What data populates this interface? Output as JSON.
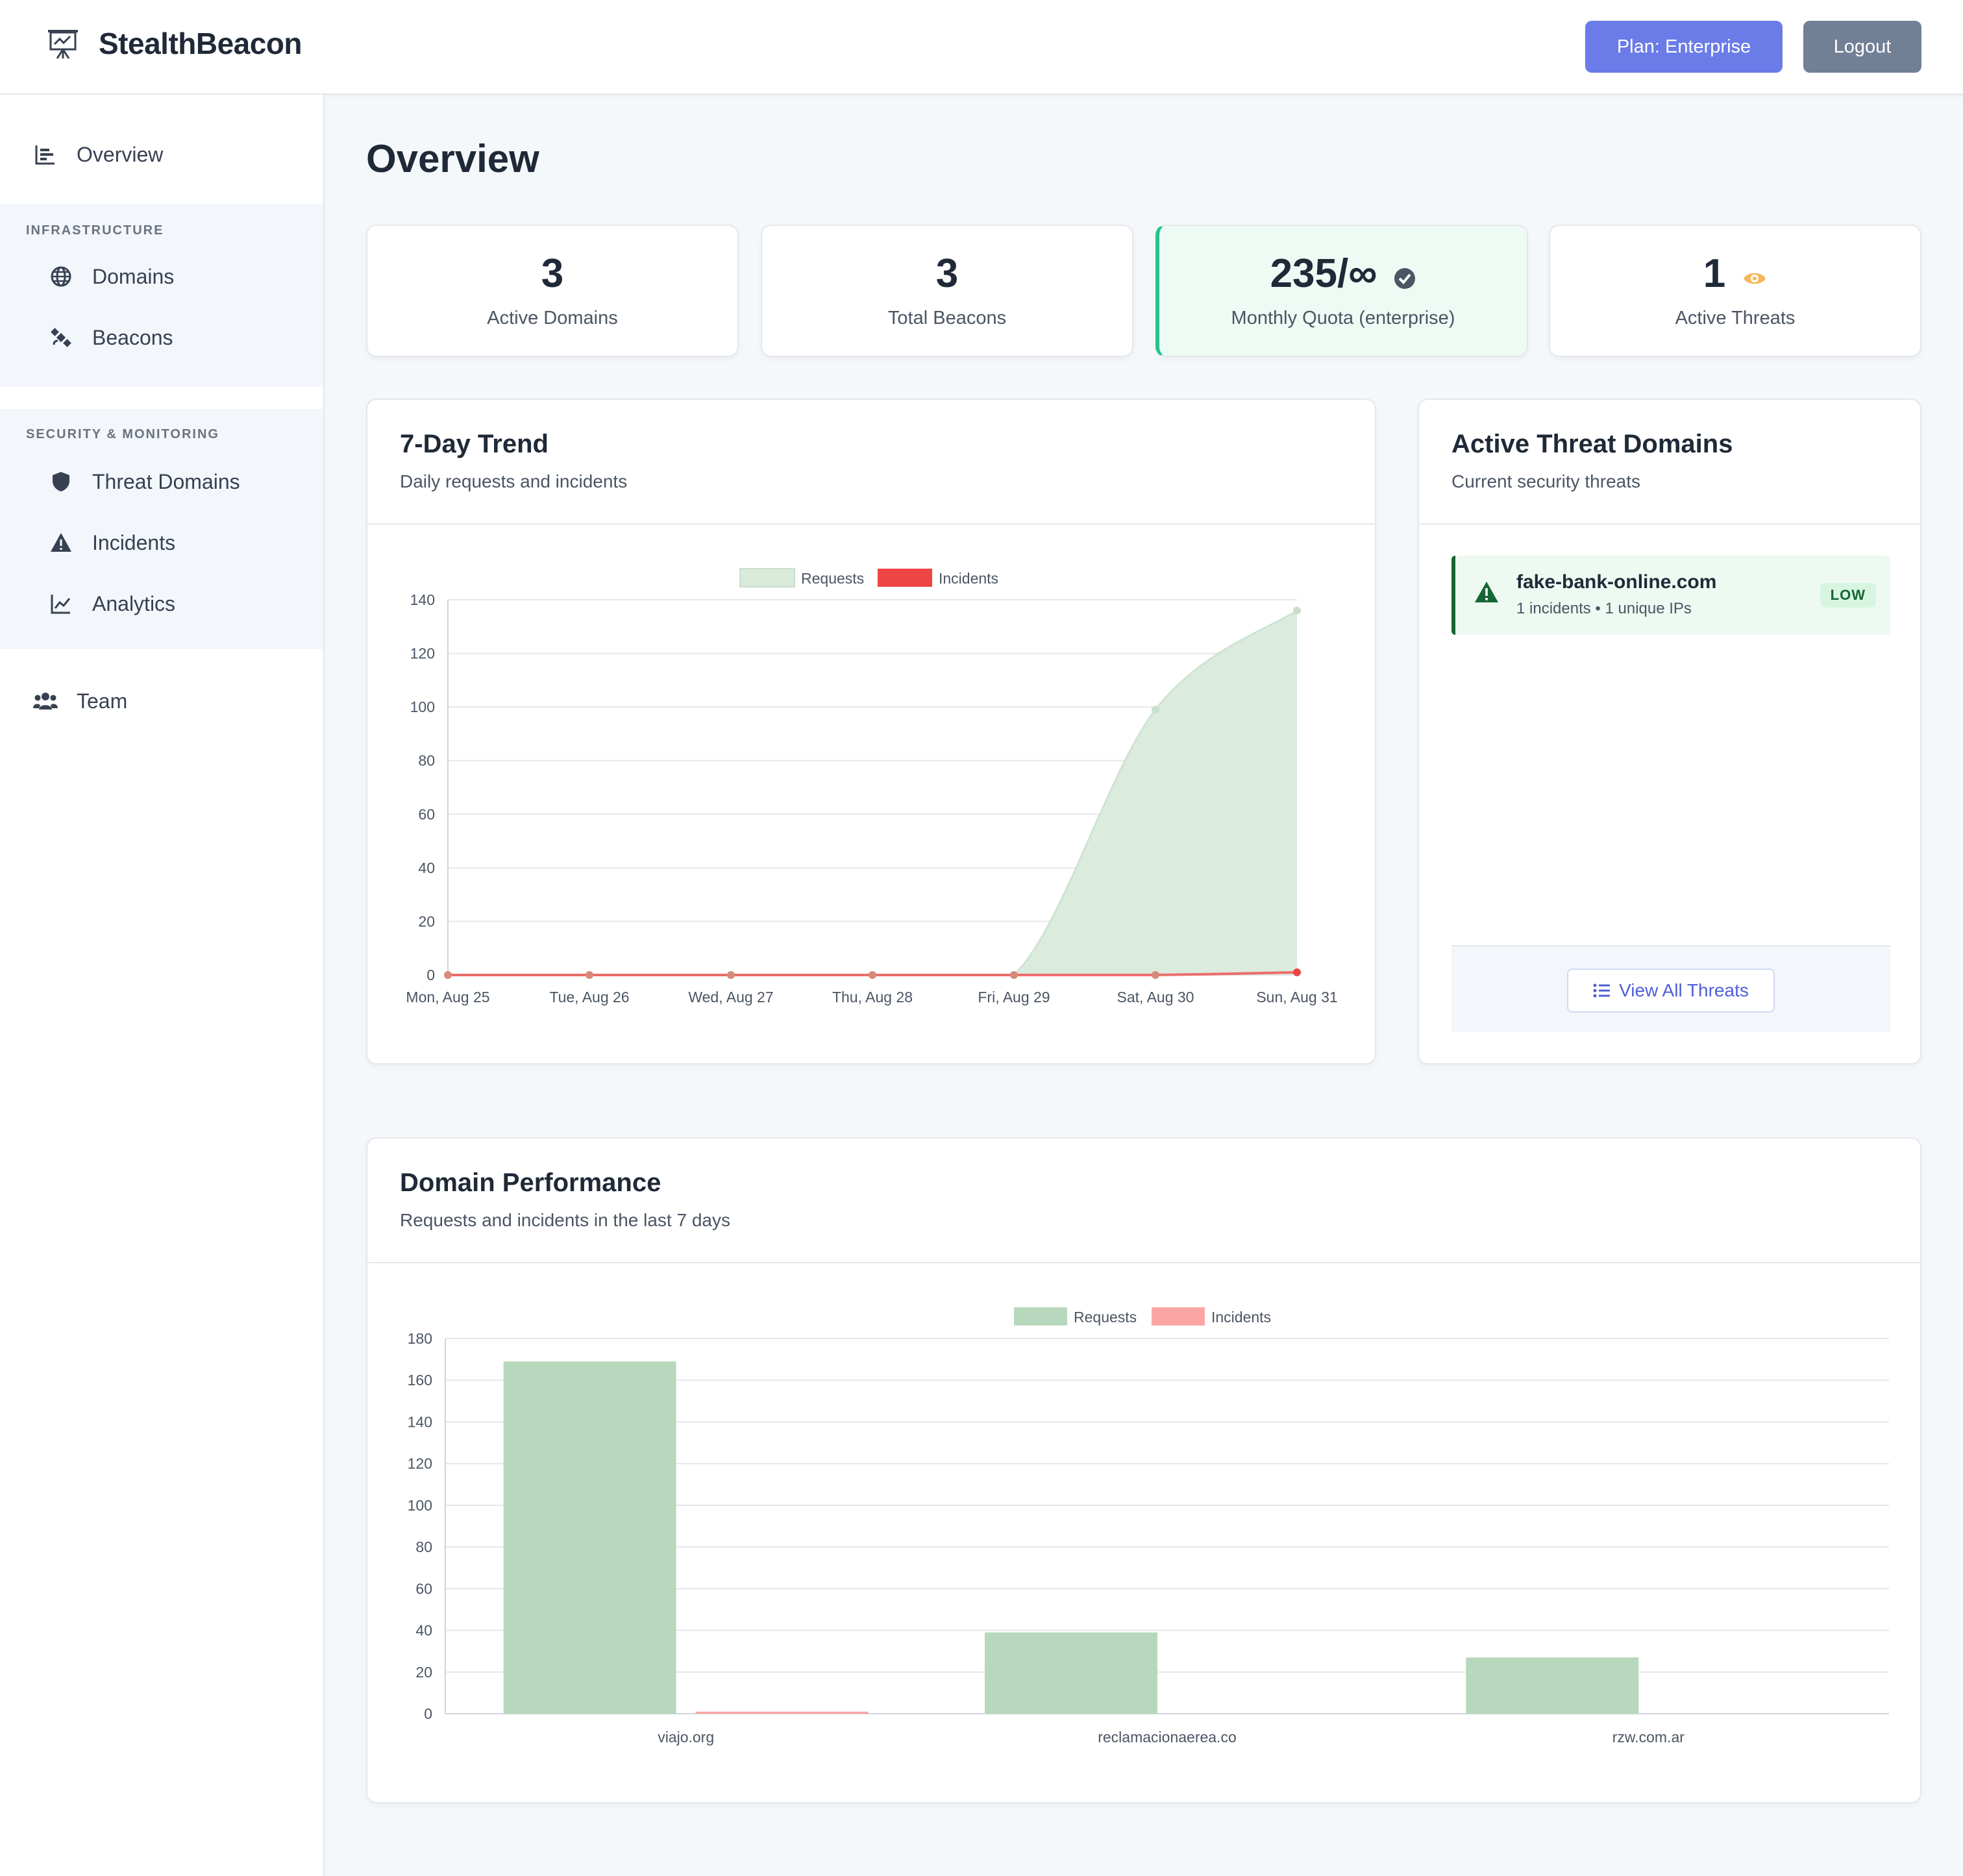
{
  "header": {
    "brand": "StealthBeacon",
    "plan_label": "Plan: Enterprise",
    "logout_label": "Logout"
  },
  "sidebar": {
    "overview": "Overview",
    "groups": [
      {
        "title": "INFRASTRUCTURE",
        "items": [
          "Domains",
          "Beacons"
        ]
      },
      {
        "title": "SECURITY & MONITORING",
        "items": [
          "Threat Domains",
          "Incidents",
          "Analytics"
        ]
      }
    ],
    "team": "Team"
  },
  "main": {
    "title": "Overview",
    "stats": [
      {
        "value": "3",
        "label": "Active Domains"
      },
      {
        "value": "3",
        "label": "Total Beacons"
      },
      {
        "value": "235/∞",
        "label": "Monthly Quota (enterprise)"
      },
      {
        "value": "1",
        "label": "Active Threats"
      }
    ],
    "trend_card": {
      "title": "7-Day Trend",
      "subtitle": "Daily requests and incidents"
    },
    "threat_card": {
      "title": "Active Threat Domains",
      "subtitle": "Current security threats",
      "items": [
        {
          "domain": "fake-bank-online.com",
          "meta": "1 incidents • 1 unique IPs",
          "level": "LOW"
        }
      ],
      "view_all": "View All Threats"
    },
    "perf_card": {
      "title": "Domain Performance",
      "subtitle": "Requests and incidents in the last 7 days"
    }
  },
  "colors": {
    "accent": "#6b7ce8",
    "requests_fill": "#d9eadb",
    "requests_bar": "#b7d8bc",
    "incidents": "#ef4444",
    "incidents_bar": "#fca5a5",
    "low_badge": "#166534"
  },
  "chart_data": [
    {
      "type": "area",
      "categories": [
        "Mon, Aug 25",
        "Tue, Aug 26",
        "Wed, Aug 27",
        "Thu, Aug 28",
        "Fri, Aug 29",
        "Sat, Aug 30",
        "Sun, Aug 31"
      ],
      "series": [
        {
          "name": "Requests",
          "values": [
            0,
            0,
            0,
            0,
            0,
            99,
            136
          ]
        },
        {
          "name": "Incidents",
          "values": [
            0,
            0,
            0,
            0,
            0,
            0,
            1
          ]
        }
      ],
      "ylim": [
        0,
        140
      ],
      "yticks": [
        0,
        20,
        40,
        60,
        80,
        100,
        120,
        140
      ],
      "legend": "top",
      "grid": true
    },
    {
      "type": "bar",
      "categories": [
        "viajo.org",
        "reclamacionaerea.co",
        "rzw.com.ar"
      ],
      "series": [
        {
          "name": "Requests",
          "values": [
            169,
            39,
            27
          ]
        },
        {
          "name": "Incidents",
          "values": [
            1,
            0,
            0
          ]
        }
      ],
      "ylim": [
        0,
        180
      ],
      "yticks": [
        0,
        20,
        40,
        60,
        80,
        100,
        120,
        140,
        160,
        180
      ],
      "legend": "top",
      "grid": true
    }
  ]
}
